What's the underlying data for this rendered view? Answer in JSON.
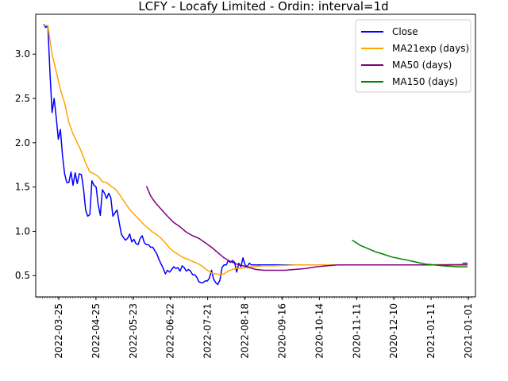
{
  "chart_data": {
    "type": "line",
    "title": "LCFY - Locafy Limited - Ordin: interval=1d",
    "xlabel": "",
    "ylabel": "",
    "x_tick_labels": [
      "2022-03-25",
      "2022-04-25",
      "2022-05-23",
      "2022-06-22",
      "2022-07-21",
      "2022-08-18",
      "2020-09-16",
      "2020-10-14",
      "2020-11-11",
      "2020-12-10",
      "2021-01-11",
      "2021-01-01"
    ],
    "y_ticks": [
      "0.5",
      "1.0",
      "1.5",
      "2.0",
      "2.5",
      "3.0"
    ],
    "ylim": [
      0.26,
      3.45
    ],
    "x_index_range": [
      0,
      202
    ],
    "legend": {
      "position": "top-right"
    },
    "grid": false,
    "series": [
      {
        "name": "Close",
        "color": "#0000ff",
        "points": [
          [
            0,
            3.34
          ],
          [
            1,
            3.3
          ],
          [
            2,
            3.32
          ],
          [
            3,
            2.8
          ],
          [
            4,
            2.34
          ],
          [
            5,
            2.5
          ],
          [
            6,
            2.28
          ],
          [
            7,
            2.04
          ],
          [
            8,
            2.15
          ],
          [
            9,
            1.85
          ],
          [
            10,
            1.65
          ],
          [
            11,
            1.55
          ],
          [
            12,
            1.55
          ],
          [
            13,
            1.67
          ],
          [
            14,
            1.52
          ],
          [
            15,
            1.66
          ],
          [
            16,
            1.54
          ],
          [
            17,
            1.65
          ],
          [
            18,
            1.64
          ],
          [
            19,
            1.48
          ],
          [
            20,
            1.24
          ],
          [
            21,
            1.17
          ],
          [
            22,
            1.19
          ],
          [
            23,
            1.57
          ],
          [
            24,
            1.52
          ],
          [
            25,
            1.5
          ],
          [
            26,
            1.3
          ],
          [
            27,
            1.18
          ],
          [
            28,
            1.47
          ],
          [
            29,
            1.43
          ],
          [
            30,
            1.37
          ],
          [
            31,
            1.43
          ],
          [
            32,
            1.38
          ],
          [
            33,
            1.17
          ],
          [
            34,
            1.21
          ],
          [
            35,
            1.24
          ],
          [
            36,
            1.1
          ],
          [
            37,
            0.97
          ],
          [
            38,
            0.93
          ],
          [
            39,
            0.9
          ],
          [
            40,
            0.92
          ],
          [
            41,
            0.97
          ],
          [
            42,
            0.88
          ],
          [
            43,
            0.91
          ],
          [
            44,
            0.86
          ],
          [
            45,
            0.85
          ],
          [
            46,
            0.92
          ],
          [
            47,
            0.95
          ],
          [
            48,
            0.87
          ],
          [
            49,
            0.85
          ],
          [
            50,
            0.85
          ],
          [
            51,
            0.82
          ],
          [
            52,
            0.82
          ],
          [
            53,
            0.78
          ],
          [
            54,
            0.74
          ],
          [
            55,
            0.68
          ],
          [
            56,
            0.63
          ],
          [
            57,
            0.58
          ],
          [
            58,
            0.52
          ],
          [
            59,
            0.56
          ],
          [
            60,
            0.54
          ],
          [
            61,
            0.57
          ],
          [
            62,
            0.6
          ],
          [
            63,
            0.58
          ],
          [
            64,
            0.59
          ],
          [
            65,
            0.55
          ],
          [
            66,
            0.61
          ],
          [
            67,
            0.59
          ],
          [
            68,
            0.55
          ],
          [
            69,
            0.57
          ],
          [
            70,
            0.55
          ],
          [
            71,
            0.51
          ],
          [
            72,
            0.51
          ],
          [
            73,
            0.48
          ],
          [
            74,
            0.43
          ],
          [
            75,
            0.42
          ],
          [
            76,
            0.42
          ],
          [
            77,
            0.44
          ],
          [
            78,
            0.44
          ],
          [
            79,
            0.47
          ],
          [
            80,
            0.56
          ],
          [
            81,
            0.46
          ],
          [
            82,
            0.42
          ],
          [
            83,
            0.4
          ],
          [
            84,
            0.45
          ],
          [
            85,
            0.59
          ],
          [
            86,
            0.62
          ],
          [
            87,
            0.62
          ],
          [
            88,
            0.67
          ],
          [
            89,
            0.65
          ],
          [
            90,
            0.67
          ],
          [
            91,
            0.65
          ],
          [
            92,
            0.54
          ],
          [
            93,
            0.64
          ],
          [
            94,
            0.6
          ],
          [
            95,
            0.7
          ],
          [
            96,
            0.62
          ],
          [
            97,
            0.6
          ],
          [
            98,
            0.64
          ],
          [
            99,
            0.62
          ],
          [
            100,
            0.62
          ],
          [
            101,
            0.62
          ],
          [
            102,
            0.62
          ],
          [
            104,
            0.62
          ],
          [
            109,
            0.62
          ],
          [
            199,
            0.62
          ],
          [
            200,
            0.64
          ],
          [
            202,
            0.64
          ]
        ]
      },
      {
        "name": "MA21exp (days)",
        "color": "#ffa500",
        "points": [
          [
            0,
            3.33
          ],
          [
            2,
            3.32
          ],
          [
            4,
            3.0
          ],
          [
            6,
            2.8
          ],
          [
            8,
            2.6
          ],
          [
            10,
            2.45
          ],
          [
            12,
            2.23
          ],
          [
            14,
            2.1
          ],
          [
            16,
            2.0
          ],
          [
            18,
            1.9
          ],
          [
            20,
            1.77
          ],
          [
            22,
            1.67
          ],
          [
            24,
            1.65
          ],
          [
            26,
            1.62
          ],
          [
            28,
            1.56
          ],
          [
            30,
            1.55
          ],
          [
            32,
            1.51
          ],
          [
            34,
            1.48
          ],
          [
            36,
            1.42
          ],
          [
            38,
            1.35
          ],
          [
            40,
            1.28
          ],
          [
            42,
            1.22
          ],
          [
            44,
            1.17
          ],
          [
            46,
            1.12
          ],
          [
            48,
            1.07
          ],
          [
            50,
            1.03
          ],
          [
            52,
            0.99
          ],
          [
            54,
            0.96
          ],
          [
            56,
            0.92
          ],
          [
            58,
            0.87
          ],
          [
            60,
            0.81
          ],
          [
            62,
            0.77
          ],
          [
            64,
            0.74
          ],
          [
            66,
            0.71
          ],
          [
            68,
            0.69
          ],
          [
            70,
            0.67
          ],
          [
            72,
            0.65
          ],
          [
            74,
            0.63
          ],
          [
            76,
            0.6
          ],
          [
            78,
            0.56
          ],
          [
            80,
            0.53
          ],
          [
            82,
            0.52
          ],
          [
            84,
            0.51
          ],
          [
            86,
            0.52
          ],
          [
            88,
            0.55
          ],
          [
            90,
            0.57
          ],
          [
            92,
            0.58
          ],
          [
            94,
            0.58
          ],
          [
            96,
            0.59
          ],
          [
            98,
            0.6
          ],
          [
            100,
            0.6
          ],
          [
            104,
            0.61
          ],
          [
            110,
            0.61
          ],
          [
            120,
            0.62
          ],
          [
            140,
            0.62
          ],
          [
            160,
            0.62
          ],
          [
            180,
            0.62
          ],
          [
            202,
            0.63
          ]
        ]
      },
      {
        "name": "MA50 (days)",
        "color": "#800080",
        "points": [
          [
            49,
            1.51
          ],
          [
            51,
            1.4
          ],
          [
            53,
            1.33
          ],
          [
            56,
            1.25
          ],
          [
            59,
            1.17
          ],
          [
            62,
            1.1
          ],
          [
            65,
            1.05
          ],
          [
            68,
            0.99
          ],
          [
            71,
            0.95
          ],
          [
            74,
            0.92
          ],
          [
            77,
            0.87
          ],
          [
            80,
            0.82
          ],
          [
            83,
            0.76
          ],
          [
            86,
            0.7
          ],
          [
            89,
            0.66
          ],
          [
            92,
            0.63
          ],
          [
            95,
            0.61
          ],
          [
            98,
            0.59
          ],
          [
            101,
            0.57
          ],
          [
            105,
            0.56
          ],
          [
            110,
            0.56
          ],
          [
            115,
            0.56
          ],
          [
            120,
            0.57
          ],
          [
            125,
            0.58
          ],
          [
            130,
            0.6
          ],
          [
            135,
            0.61
          ],
          [
            140,
            0.62
          ],
          [
            150,
            0.62
          ],
          [
            160,
            0.62
          ],
          [
            170,
            0.62
          ],
          [
            180,
            0.62
          ],
          [
            202,
            0.62
          ]
        ]
      },
      {
        "name": "MA150 (days)",
        "color": "#008000",
        "points": [
          [
            147,
            0.9
          ],
          [
            149,
            0.87
          ],
          [
            151,
            0.84
          ],
          [
            154,
            0.81
          ],
          [
            158,
            0.77
          ],
          [
            162,
            0.74
          ],
          [
            166,
            0.71
          ],
          [
            170,
            0.69
          ],
          [
            174,
            0.67
          ],
          [
            178,
            0.65
          ],
          [
            182,
            0.63
          ],
          [
            186,
            0.62
          ],
          [
            190,
            0.61
          ],
          [
            194,
            0.605
          ],
          [
            198,
            0.6
          ],
          [
            202,
            0.6
          ]
        ]
      }
    ]
  }
}
